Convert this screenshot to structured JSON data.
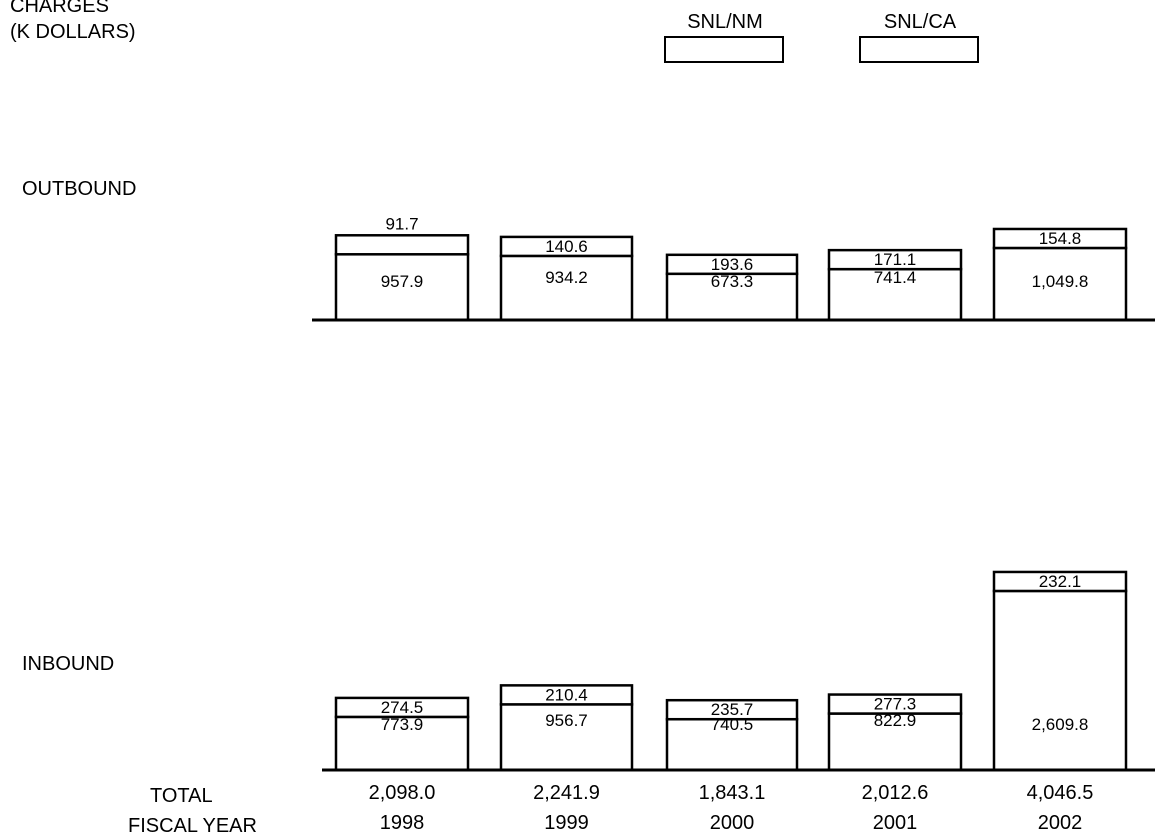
{
  "chart_data": {
    "type": "bar",
    "stacked": true,
    "y_title_lines": [
      "CHARGES",
      "(K DOLLARS)"
    ],
    "legend": {
      "placement": "top-center",
      "items": [
        {
          "name": "SNL/NM"
        },
        {
          "name": "SNL/CA"
        }
      ]
    },
    "panels": [
      {
        "label": "OUTBOUND",
        "series": [
          {
            "name": "SNL/NM",
            "values": [
              957.9,
              934.2,
              673.3,
              741.4,
              1049.8
            ],
            "labels": [
              "957.9",
              "934.2",
              "673.3",
              "741.4",
              "1,049.8"
            ]
          },
          {
            "name": "SNL/CA",
            "values": [
              91.7,
              140.6,
              193.6,
              171.1,
              154.8
            ],
            "labels": [
              "91.7",
              "140.6",
              "193.6",
              "171.1",
              "154.8"
            ]
          }
        ]
      },
      {
        "label": "INBOUND",
        "series": [
          {
            "name": "SNL/NM",
            "values": [
              773.9,
              956.7,
              740.5,
              822.9,
              2609.8
            ],
            "labels": [
              "773.9",
              "956.7",
              "740.5",
              "822.9",
              "2,609.8"
            ]
          },
          {
            "name": "SNL/CA",
            "values": [
              274.5,
              210.4,
              235.7,
              277.3,
              232.1
            ],
            "labels": [
              "274.5",
              "210.4",
              "235.7",
              "277.3",
              "232.1"
            ]
          }
        ]
      }
    ],
    "total_label": "TOTAL",
    "totals": [
      2098.0,
      2241.9,
      1843.1,
      2012.6,
      4046.5
    ],
    "total_labels": [
      "2,098.0",
      "2,241.9",
      "1,843.1",
      "2,012.6",
      "4,046.5"
    ],
    "xlabel": "FISCAL YEAR",
    "categories": [
      "1998",
      "1999",
      "2000",
      "2001",
      "2002"
    ]
  }
}
